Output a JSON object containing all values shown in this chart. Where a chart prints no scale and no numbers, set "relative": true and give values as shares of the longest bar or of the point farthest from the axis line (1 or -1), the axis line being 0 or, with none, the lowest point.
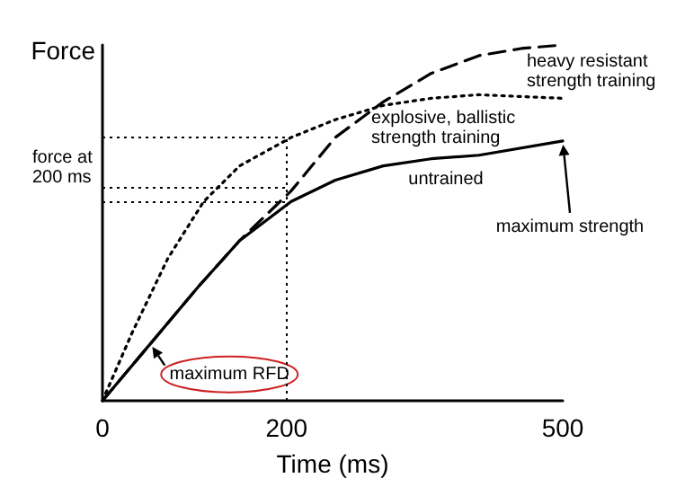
{
  "chart_data": {
    "type": "line",
    "relative": true,
    "xlabel": "Time (ms)",
    "ylabel": "Force",
    "xlim": [
      0,
      500
    ],
    "xticks": [
      0,
      200,
      500
    ],
    "marker": "none",
    "series": [
      {
        "name": "untrained",
        "color": "#000000",
        "line_style": "solid",
        "x": [
          0,
          52,
          104,
          149,
          205,
          253,
          305,
          357,
          409,
          500
        ],
        "values": [
          0,
          0.16,
          0.32,
          0.45,
          0.56,
          0.62,
          0.66,
          0.68,
          0.69,
          0.73
        ]
      },
      {
        "name": "explosive, ballistic strength training",
        "color": "#000000",
        "line_style": "dotted",
        "x": [
          0,
          32,
          71,
          110,
          149,
          205,
          253,
          305,
          357,
          409,
          500
        ],
        "values": [
          0,
          0.19,
          0.4,
          0.56,
          0.66,
          0.74,
          0.79,
          0.83,
          0.85,
          0.86,
          0.85
        ]
      },
      {
        "name": "heavy resistant strength training",
        "color": "#000000",
        "line_style": "dashed",
        "x": [
          0,
          52,
          104,
          149,
          205,
          253,
          305,
          357,
          409,
          455,
          500
        ],
        "values": [
          0,
          0.16,
          0.32,
          0.45,
          0.59,
          0.74,
          0.84,
          0.92,
          0.97,
          0.99,
          1
        ]
      }
    ],
    "ref_lines": [
      {
        "axis": "x",
        "value": 200
      },
      {
        "axis": "y",
        "value": 0.74
      },
      {
        "axis": "y",
        "value": 0.6
      },
      {
        "axis": "y",
        "value": 0.56
      }
    ],
    "annotations": [
      "force at 200 ms",
      {
        "text": "maximum strength",
        "x": 500,
        "y": 0.73
      },
      {
        "text": "maximum RFD",
        "x": 52,
        "y": 0.16
      }
    ]
  }
}
